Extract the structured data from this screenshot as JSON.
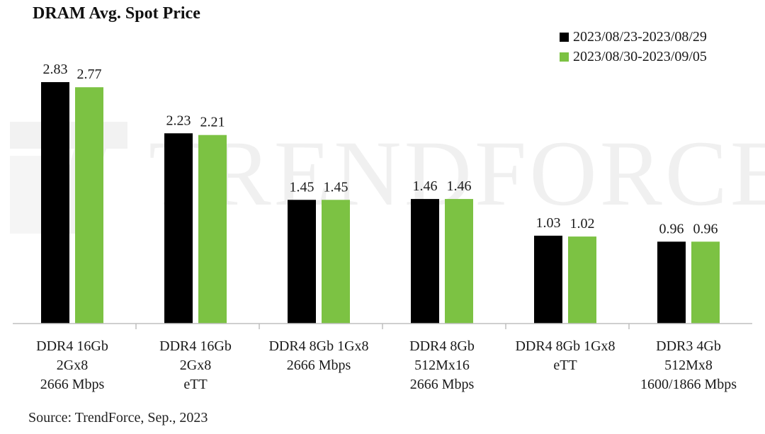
{
  "chart_data": {
    "type": "bar",
    "title": "DRAM Avg. Spot Price",
    "source": "Source: TrendForce, Sep., 2023",
    "watermark": "TRENDFORCE",
    "categories": [
      "DDR4 16Gb\n2Gx8\n2666 Mbps",
      "DDR4 16Gb\n2Gx8\neTT",
      "DDR4 8Gb 1Gx8\n2666 Mbps",
      "DDR4 8Gb\n512Mx16\n2666 Mbps",
      "DDR4 8Gb 1Gx8\neTT",
      "DDR3 4Gb\n512Mx8\n1600/1866 Mbps"
    ],
    "series": [
      {
        "name": "2023/08/23-2023/08/29",
        "color": "#000000",
        "values": [
          2.83,
          2.23,
          1.45,
          1.46,
          1.03,
          0.96
        ],
        "labels": [
          "2.83",
          "2.23",
          "1.45",
          "1.46",
          "1.03",
          "0.96"
        ]
      },
      {
        "name": "2023/08/30-2023/09/05",
        "color": "#7cc243",
        "values": [
          2.77,
          2.21,
          1.45,
          1.46,
          1.02,
          0.96
        ],
        "labels": [
          "2.77",
          "2.21",
          "1.45",
          "1.46",
          "1.02",
          "0.96"
        ]
      }
    ],
    "ylim": [
      0,
      3.0
    ],
    "grid": false,
    "legend_position": "top-right",
    "xlabel": "",
    "ylabel": ""
  }
}
